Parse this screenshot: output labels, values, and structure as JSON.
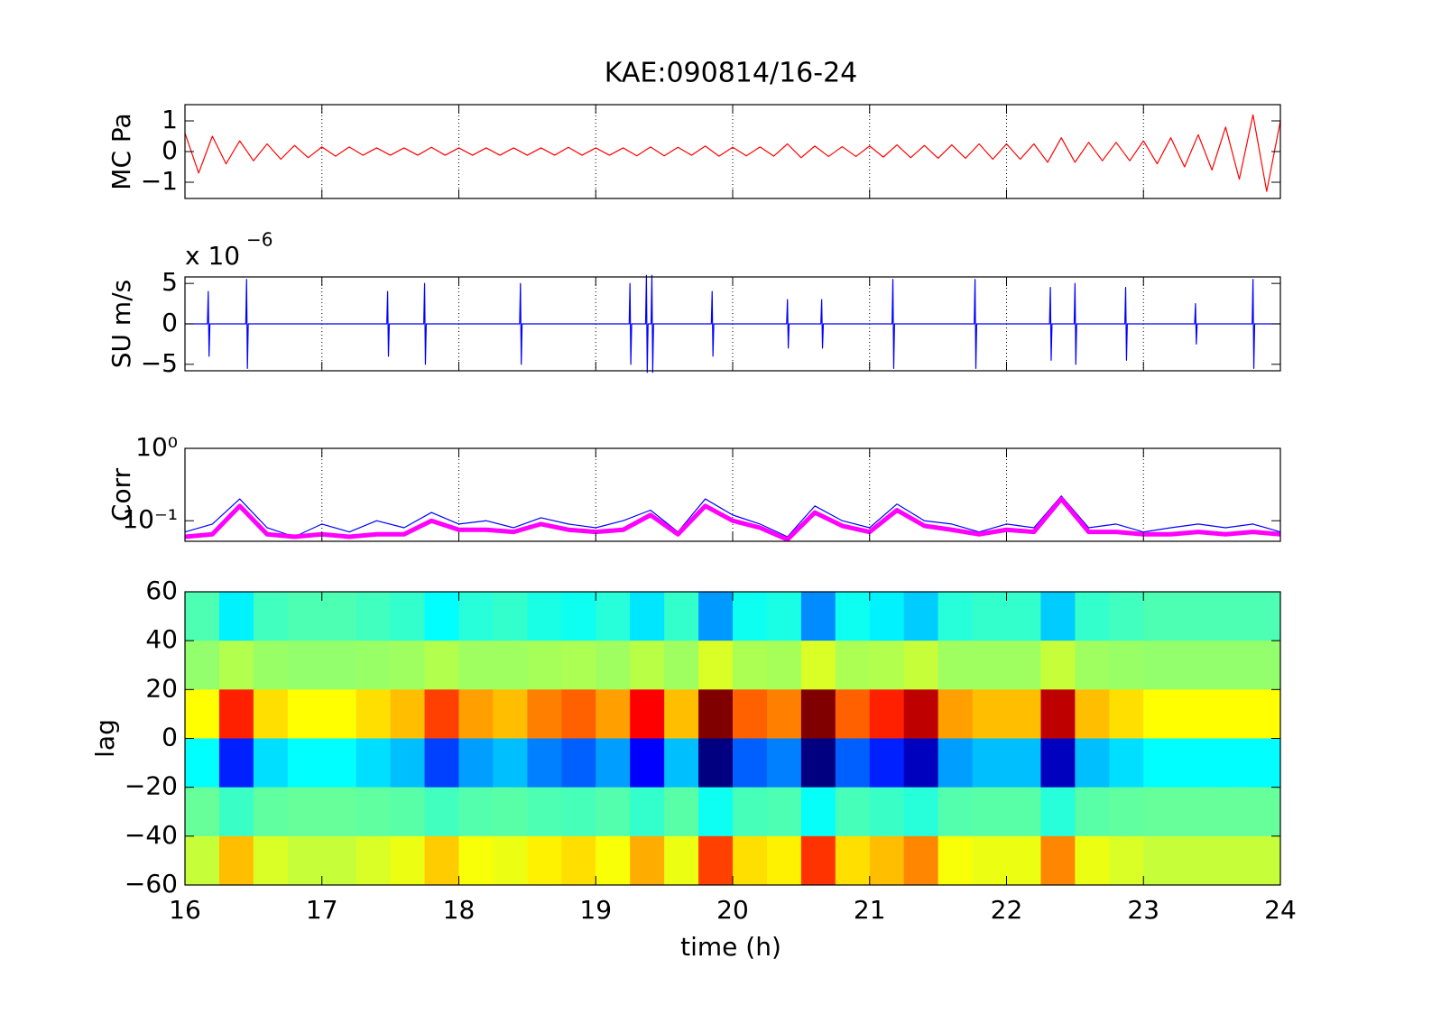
{
  "chart_data": [
    {
      "type": "line",
      "title": "KAE:090814/16-24",
      "ylabel": "MC Pa",
      "color": "#ff0000",
      "xlim": [
        16,
        24
      ],
      "xticks": [
        16,
        17,
        18,
        19,
        20,
        21,
        22,
        23,
        24
      ],
      "xgrid": true,
      "xtick_labels": false,
      "ylim": [
        -1.53,
        1.53
      ],
      "yticks": [
        {
          "value": -1,
          "label": "−1"
        },
        0,
        1
      ],
      "x": [
        16,
        16.1,
        16.2,
        16.3,
        16.4,
        16.5,
        16.6,
        16.7,
        16.8,
        16.9,
        17,
        17.1,
        17.2,
        17.3,
        17.4,
        17.5,
        17.6,
        17.7,
        17.8,
        17.9,
        18,
        18.1,
        18.2,
        18.3,
        18.4,
        18.5,
        18.6,
        18.7,
        18.8,
        18.9,
        19,
        19.1,
        19.2,
        19.3,
        19.4,
        19.5,
        19.6,
        19.7,
        19.8,
        19.9,
        20,
        20.1,
        20.2,
        20.3,
        20.4,
        20.5,
        20.6,
        20.7,
        20.8,
        20.9,
        21,
        21.1,
        21.2,
        21.3,
        21.4,
        21.5,
        21.6,
        21.7,
        21.8,
        21.9,
        22,
        22.1,
        22.2,
        22.3,
        22.4,
        22.5,
        22.6,
        22.7,
        22.8,
        22.9,
        23,
        23.1,
        23.2,
        23.3,
        23.4,
        23.5,
        23.6,
        23.7,
        23.8,
        23.9,
        24
      ],
      "values": [
        0.6,
        -0.7,
        0.5,
        -0.4,
        0.35,
        -0.3,
        0.25,
        -0.25,
        0.2,
        -0.2,
        0.15,
        -0.15,
        0.15,
        -0.12,
        0.12,
        -0.12,
        0.12,
        -0.12,
        0.14,
        -0.12,
        0.12,
        -0.12,
        0.12,
        -0.12,
        0.12,
        -0.12,
        0.12,
        -0.12,
        0.14,
        -0.12,
        0.12,
        -0.12,
        0.12,
        -0.14,
        0.15,
        -0.14,
        0.14,
        -0.12,
        0.18,
        -0.15,
        0.14,
        -0.14,
        0.15,
        -0.15,
        0.25,
        -0.2,
        0.18,
        -0.16,
        0.16,
        -0.16,
        0.18,
        -0.18,
        0.22,
        -0.2,
        0.2,
        -0.22,
        0.22,
        -0.22,
        0.25,
        -0.25,
        0.25,
        -0.25,
        0.25,
        -0.35,
        0.45,
        -0.35,
        0.3,
        -0.3,
        0.3,
        -0.3,
        0.35,
        -0.4,
        0.45,
        -0.5,
        0.55,
        -0.6,
        0.8,
        -0.9,
        1.2,
        -1.3,
        1.0
      ]
    },
    {
      "type": "line",
      "ylabel": "SU m/s",
      "multiplier": "x 10",
      "multiplier_exponent": "−6",
      "color": "#0000ff",
      "xlim": [
        16,
        24
      ],
      "xticks": [
        16,
        17,
        18,
        19,
        20,
        21,
        22,
        23,
        24
      ],
      "xgrid": true,
      "xtick_labels": false,
      "ylim": [
        -5.8,
        5.8
      ],
      "yticks": [
        {
          "value": -5,
          "label": "−5"
        },
        0,
        5
      ],
      "x": [
        16,
        16.164,
        16.17,
        16.176,
        16.182,
        16.444,
        16.45,
        16.456,
        16.462,
        17.474,
        17.48,
        17.486,
        17.492,
        17.744,
        17.75,
        17.756,
        17.762,
        18.444,
        18.45,
        18.456,
        18.462,
        19.244,
        19.25,
        19.256,
        19.262,
        19.364,
        19.37,
        19.376,
        19.382,
        19.404,
        19.41,
        19.416,
        19.422,
        19.844,
        19.85,
        19.856,
        19.862,
        20.394,
        20.4,
        20.406,
        20.412,
        20.644,
        20.65,
        20.656,
        20.662,
        21.164,
        21.17,
        21.176,
        21.182,
        21.764,
        21.77,
        21.776,
        21.782,
        22.314,
        22.32,
        22.326,
        22.332,
        22.494,
        22.5,
        22.506,
        22.512,
        22.864,
        22.87,
        22.876,
        22.882,
        23.374,
        23.38,
        23.386,
        23.392,
        23.794,
        23.8,
        23.806,
        23.812,
        24
      ],
      "values": [
        0,
        0,
        4,
        -4,
        0,
        0,
        5.5,
        -5.5,
        0,
        0,
        4,
        -4,
        0,
        0,
        5,
        -5,
        0,
        0,
        5,
        -5,
        0,
        0,
        5,
        -5,
        0,
        0,
        6,
        -6,
        0,
        0,
        6,
        -6,
        0,
        0,
        4,
        -4,
        0,
        0,
        3,
        -3,
        0,
        0,
        3,
        -3,
        0,
        0,
        5.5,
        -5.5,
        0,
        0,
        5.5,
        -5.5,
        0,
        0,
        4.5,
        -4.5,
        0,
        0,
        5,
        -5,
        0,
        0,
        4.5,
        -4.5,
        0,
        0,
        2.5,
        -2.5,
        0,
        0,
        5.5,
        -5.5,
        0,
        0
      ]
    },
    {
      "type": "line",
      "ylabel": "Corr",
      "yscale": "log",
      "xlim": [
        16,
        24
      ],
      "xticks": [
        16,
        17,
        18,
        19,
        20,
        21,
        22,
        23,
        24
      ],
      "xgrid": true,
      "xtick_labels": false,
      "ylim": [
        0.052,
        1
      ],
      "yticks": [
        {
          "value": 0.1,
          "label": "10⁻¹"
        },
        {
          "value": 1,
          "label": "10⁰"
        }
      ],
      "x": [
        16,
        16.2,
        16.4,
        16.6,
        16.8,
        17,
        17.2,
        17.4,
        17.6,
        17.8,
        18,
        18.2,
        18.4,
        18.6,
        18.8,
        19,
        19.2,
        19.4,
        19.6,
        19.8,
        20,
        20.2,
        20.4,
        20.6,
        20.8,
        21,
        21.2,
        21.4,
        21.6,
        21.8,
        22,
        22.2,
        22.4,
        22.6,
        22.8,
        23,
        23.2,
        23.4,
        23.6,
        23.8,
        24
      ],
      "series": [
        {
          "color": "#0000ff",
          "values": [
            0.07,
            0.09,
            0.2,
            0.08,
            0.06,
            0.09,
            0.07,
            0.1,
            0.08,
            0.13,
            0.09,
            0.1,
            0.08,
            0.11,
            0.09,
            0.08,
            0.1,
            0.14,
            0.07,
            0.2,
            0.12,
            0.09,
            0.06,
            0.16,
            0.1,
            0.08,
            0.17,
            0.1,
            0.09,
            0.07,
            0.09,
            0.08,
            0.22,
            0.08,
            0.09,
            0.07,
            0.08,
            0.09,
            0.08,
            0.09,
            0.07
          ]
        },
        {
          "color": "#ff00ff",
          "values": [
            0.06,
            0.065,
            0.16,
            0.065,
            0.06,
            0.065,
            0.06,
            0.065,
            0.065,
            0.1,
            0.075,
            0.075,
            0.07,
            0.09,
            0.075,
            0.07,
            0.075,
            0.12,
            0.065,
            0.16,
            0.1,
            0.08,
            0.055,
            0.13,
            0.085,
            0.07,
            0.14,
            0.085,
            0.075,
            0.065,
            0.075,
            0.07,
            0.2,
            0.07,
            0.07,
            0.065,
            0.065,
            0.07,
            0.065,
            0.07,
            0.065
          ]
        }
      ]
    },
    {
      "type": "heatmap",
      "ylabel": "lag",
      "xlabel": "time (h)",
      "xlim": [
        16,
        24
      ],
      "xticks": [
        16,
        17,
        18,
        19,
        20,
        21,
        22,
        23,
        24
      ],
      "ylim": [
        -60,
        60
      ],
      "yticks": [
        {
          "value": -60,
          "label": "−60"
        },
        {
          "value": -40,
          "label": "−40"
        },
        {
          "value": -20,
          "label": "−20"
        },
        0,
        20,
        40,
        60
      ],
      "clim": [
        -0.8,
        0.8
      ],
      "x": [
        16,
        16.25,
        16.5,
        16.75,
        17,
        17.25,
        17.5,
        17.75,
        18,
        18.25,
        18.5,
        18.75,
        19,
        19.25,
        19.5,
        19.75,
        20,
        20.25,
        20.5,
        20.75,
        21,
        21.25,
        21.5,
        21.75,
        22,
        22.25,
        22.5,
        22.75,
        23,
        23.25,
        23.5,
        23.75,
        24
      ],
      "y": [
        60,
        40,
        20,
        0,
        -20,
        -40,
        -60
      ],
      "z": [
        [
          -0.08,
          -0.22,
          -0.1,
          -0.08,
          -0.08,
          -0.1,
          -0.12,
          -0.2,
          -0.14,
          -0.12,
          -0.16,
          -0.18,
          -0.14,
          -0.24,
          -0.12,
          -0.36,
          -0.18,
          -0.16,
          -0.38,
          -0.18,
          -0.22,
          -0.28,
          -0.14,
          -0.12,
          -0.12,
          -0.28,
          -0.12,
          -0.1,
          -0.08,
          -0.08,
          -0.08,
          -0.08
        ],
        [
          0.03,
          0.08,
          0.04,
          0.03,
          0.03,
          0.04,
          0.05,
          0.08,
          0.05,
          0.05,
          0.06,
          0.07,
          0.05,
          0.09,
          0.05,
          0.14,
          0.07,
          0.06,
          0.14,
          0.07,
          0.08,
          0.11,
          0.05,
          0.05,
          0.05,
          0.11,
          0.05,
          0.04,
          0.03,
          0.03,
          0.03,
          0.03
        ],
        [
          0.2,
          0.55,
          0.25,
          0.2,
          0.2,
          0.25,
          0.3,
          0.5,
          0.35,
          0.3,
          0.4,
          0.45,
          0.35,
          0.6,
          0.3,
          0.9,
          0.45,
          0.4,
          0.95,
          0.45,
          0.55,
          0.7,
          0.35,
          0.3,
          0.3,
          0.7,
          0.3,
          0.25,
          0.2,
          0.2,
          0.2,
          0.2
        ],
        [
          -0.2,
          -0.55,
          -0.25,
          -0.2,
          -0.2,
          -0.25,
          -0.3,
          -0.5,
          -0.35,
          -0.3,
          -0.4,
          -0.45,
          -0.35,
          -0.6,
          -0.3,
          -0.9,
          -0.45,
          -0.4,
          -0.95,
          -0.45,
          -0.55,
          -0.7,
          -0.35,
          -0.3,
          -0.3,
          -0.7,
          -0.3,
          -0.25,
          -0.2,
          -0.2,
          -0.2,
          -0.2
        ],
        [
          -0.04,
          -0.11,
          -0.05,
          -0.04,
          -0.04,
          -0.05,
          -0.06,
          -0.1,
          -0.07,
          -0.06,
          -0.08,
          -0.09,
          -0.07,
          -0.12,
          -0.06,
          -0.18,
          -0.09,
          -0.08,
          -0.19,
          -0.09,
          -0.11,
          -0.14,
          -0.07,
          -0.06,
          -0.06,
          -0.14,
          -0.06,
          -0.05,
          -0.04,
          -0.04,
          -0.04,
          -0.04
        ],
        [
          0.11,
          0.3,
          0.14,
          0.11,
          0.11,
          0.14,
          0.17,
          0.28,
          0.19,
          0.17,
          0.22,
          0.25,
          0.19,
          0.33,
          0.17,
          0.5,
          0.25,
          0.22,
          0.52,
          0.25,
          0.3,
          0.39,
          0.19,
          0.17,
          0.17,
          0.39,
          0.17,
          0.14,
          0.11,
          0.11,
          0.11,
          0.11
        ]
      ]
    }
  ]
}
